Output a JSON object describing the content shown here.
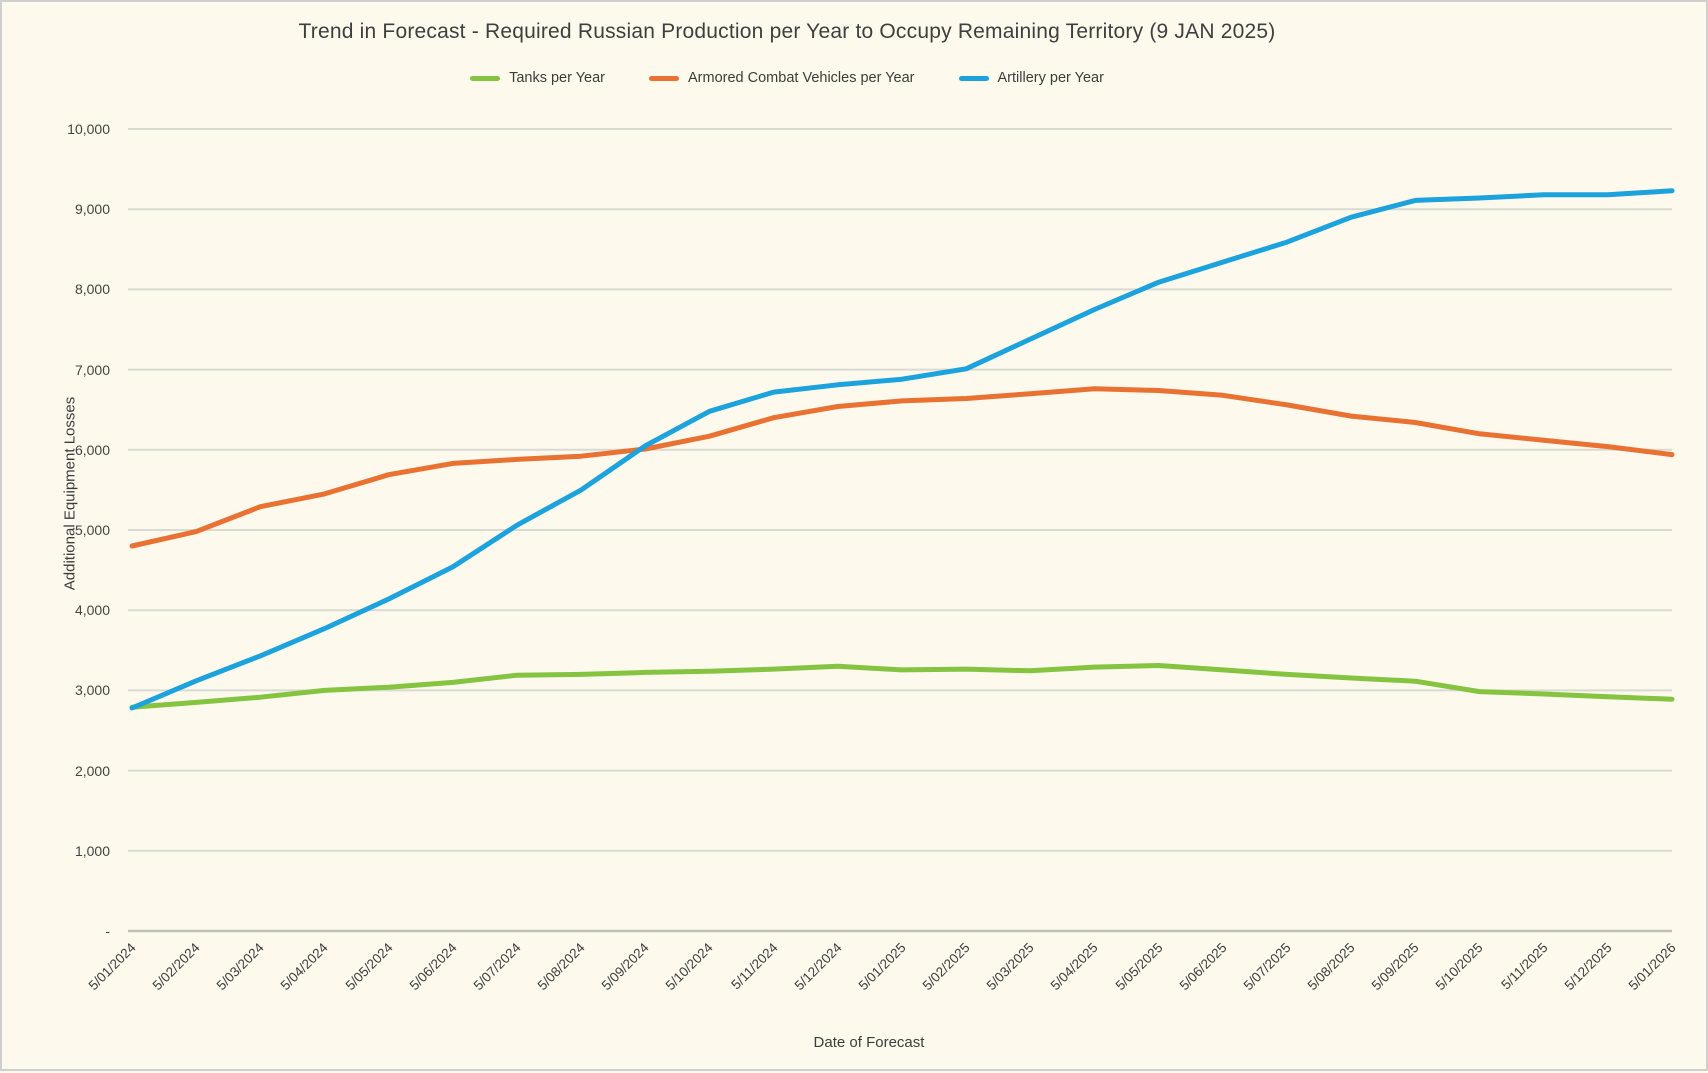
{
  "page": {
    "background": "#FDF9EC",
    "border_color": "#CFCFCF",
    "gridline_color": "#DADAD2",
    "axis_line_color": "#C0C0B8",
    "text_color": "#3F3F3F"
  },
  "chart_data": {
    "type": "line",
    "title": "Trend in Forecast - Required Russian Production per Year to Occupy Remaining Territory (9 JAN 2025)",
    "xlabel": "Date of Forecast",
    "ylabel": "Additional Equipment Losses",
    "ylim": [
      0,
      10000
    ],
    "ytick_step": 1000,
    "ytick_labels": [
      "-",
      "1,000",
      "2,000",
      "3,000",
      "4,000",
      "5,000",
      "6,000",
      "7,000",
      "8,000",
      "9,000",
      "10,000"
    ],
    "grid": true,
    "legend_position": "top",
    "categories": [
      "5/01/2024",
      "5/02/2024",
      "5/03/2024",
      "5/04/2024",
      "5/05/2024",
      "5/06/2024",
      "5/07/2024",
      "5/08/2024",
      "5/09/2024",
      "5/10/2024",
      "5/11/2024",
      "5/12/2024",
      "5/01/2025",
      "5/02/2025",
      "5/03/2025",
      "5/04/2025",
      "5/05/2025",
      "5/06/2025",
      "5/07/2025",
      "5/08/2025",
      "5/09/2025",
      "5/10/2025",
      "5/11/2025",
      "5/12/2025",
      "5/01/2026"
    ],
    "series": [
      {
        "name": "Tanks per Year",
        "color": "#84C441",
        "values": [
          2790,
          2850,
          2915,
          3000,
          3040,
          3100,
          3190,
          3200,
          3225,
          3240,
          3265,
          3300,
          3255,
          3265,
          3245,
          3290,
          3310,
          3255,
          3200,
          3155,
          3115,
          2985,
          2955,
          2920,
          2890
        ]
      },
      {
        "name": "Armored Combat Vehicles per Year",
        "color": "#E97132",
        "values": [
          4800,
          4980,
          5290,
          5450,
          5690,
          5830,
          5880,
          5920,
          6010,
          6170,
          6400,
          6540,
          6610,
          6640,
          6700,
          6760,
          6740,
          6680,
          6560,
          6420,
          6340,
          6200,
          6120,
          6040,
          5940
        ]
      },
      {
        "name": "Artillery per Year",
        "color": "#1CA2DC",
        "values": [
          2780,
          3120,
          3430,
          3770,
          4140,
          4540,
          5060,
          5500,
          6050,
          6480,
          6720,
          6810,
          6880,
          7010,
          7380,
          7750,
          8090,
          8340,
          8590,
          8900,
          9110,
          9140,
          9180,
          9180,
          9230
        ]
      }
    ]
  }
}
